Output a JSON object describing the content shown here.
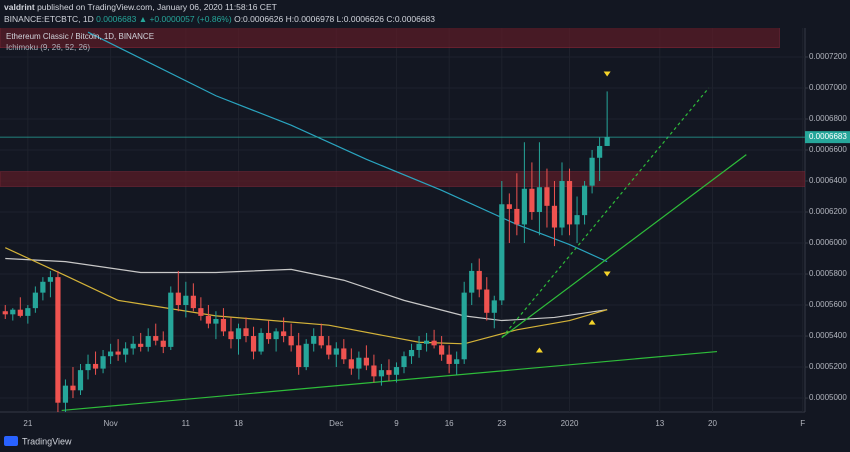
{
  "header": {
    "user": "valdrint",
    "published": "published on TradingView.com, January 06, 2020 11:58:16 CET",
    "symbol": "BINANCE:ETCBTC, 1D",
    "price": "0.0006683",
    "change": "▲ +0.0000057 (+0.86%)",
    "open": "O:0.0006626",
    "high": "H:0.0006978",
    "low": "L:0.0006626",
    "close": "C:0.0006683"
  },
  "footer": {
    "logo": "TradingView"
  },
  "chart_data": {
    "type": "candlestick",
    "legend": [
      "Ethereum Classic / Bitcoin, 1D, BINANCE",
      "Ichimoku (9, 26, 52, 26)"
    ],
    "up_color": "#26a69a",
    "down_color": "#ef5350",
    "grid": true,
    "xlim": [
      -3.7,
      103.3
    ],
    "ylim": [
      0.000491,
      0.0007387
    ],
    "xticks": [
      {
        "value": 0,
        "label": "21"
      },
      {
        "value": 11,
        "label": "Nov"
      },
      {
        "value": 21,
        "label": "11"
      },
      {
        "value": 28,
        "label": "18"
      },
      {
        "value": 41,
        "label": "Dec"
      },
      {
        "value": 49,
        "label": "9"
      },
      {
        "value": 56,
        "label": "16"
      },
      {
        "value": 63,
        "label": "23"
      },
      {
        "value": 72,
        "label": "2020"
      },
      {
        "value": 84,
        "label": "13"
      },
      {
        "value": 91,
        "label": "20"
      },
      {
        "value": 103,
        "label": "F"
      }
    ],
    "yticks": [
      {
        "value": 0.00072,
        "label": "0.0007200"
      },
      {
        "value": 0.0007,
        "label": "0.0007000"
      },
      {
        "value": 0.00068,
        "label": "0.0006800"
      },
      {
        "value": 0.00066,
        "label": "0.0006600"
      },
      {
        "value": 0.00064,
        "label": "0.0006400"
      },
      {
        "value": 0.00062,
        "label": "0.0006200"
      },
      {
        "value": 0.0006,
        "label": "0.0006000"
      },
      {
        "value": 0.00058,
        "label": "0.0005800"
      },
      {
        "value": 0.00056,
        "label": "0.0005600"
      },
      {
        "value": 0.00054,
        "label": "0.0005400"
      },
      {
        "value": 0.00052,
        "label": "0.0005200"
      },
      {
        "value": 0.0005,
        "label": "0.0005000"
      }
    ],
    "x": [
      -3,
      -2,
      -1,
      0,
      1,
      2,
      3,
      4,
      5,
      6,
      7,
      8,
      9,
      10,
      11,
      12,
      13,
      14,
      15,
      16,
      17,
      18,
      19,
      20,
      21,
      22,
      23,
      24,
      25,
      26,
      27,
      28,
      29,
      30,
      31,
      32,
      33,
      34,
      35,
      36,
      37,
      38,
      39,
      40,
      41,
      42,
      43,
      44,
      45,
      46,
      47,
      48,
      49,
      50,
      51,
      52,
      53,
      54,
      55,
      56,
      57,
      58,
      59,
      60,
      61,
      62,
      63,
      64,
      65,
      66,
      67,
      68,
      69,
      70,
      71,
      72,
      73,
      74,
      75,
      76,
      77
    ],
    "open": [
      0.000556,
      0.000554,
      0.000557,
      0.000553,
      0.000558,
      0.000568,
      0.000575,
      0.000578,
      0.000497,
      0.000508,
      0.000505,
      0.000518,
      0.000522,
      0.000519,
      0.000527,
      0.00053,
      0.000528,
      0.000532,
      0.000535,
      0.000533,
      0.00054,
      0.000537,
      0.000533,
      0.000568,
      0.00056,
      0.000566,
      0.000558,
      0.000553,
      0.000548,
      0.000551,
      0.000543,
      0.000538,
      0.000545,
      0.00054,
      0.00053,
      0.000542,
      0.000538,
      0.000543,
      0.00054,
      0.000534,
      0.00052,
      0.000535,
      0.00054,
      0.000534,
      0.000528,
      0.000532,
      0.000525,
      0.000519,
      0.000526,
      0.000521,
      0.000514,
      0.000518,
      0.000515,
      0.00052,
      0.000527,
      0.000531,
      0.000535,
      0.000537,
      0.000534,
      0.000528,
      0.000522,
      0.000525,
      0.000568,
      0.000582,
      0.00057,
      0.000555,
      0.000563,
      0.000625,
      0.000622,
      0.000612,
      0.000635,
      0.00062,
      0.000636,
      0.000624,
      0.00061,
      0.00064,
      0.000612,
      0.000618,
      0.000637,
      0.000655,
      0.0006626
    ],
    "high": [
      0.00056,
      0.000558,
      0.000565,
      0.00056,
      0.000572,
      0.000578,
      0.000582,
      0.000582,
      0.000512,
      0.00052,
      0.000522,
      0.000528,
      0.00053,
      0.000531,
      0.000535,
      0.000538,
      0.000536,
      0.00054,
      0.000542,
      0.000545,
      0.000548,
      0.000543,
      0.000572,
      0.000582,
      0.000575,
      0.000574,
      0.000565,
      0.00056,
      0.000556,
      0.000558,
      0.000552,
      0.000548,
      0.000552,
      0.000546,
      0.000545,
      0.00055,
      0.000545,
      0.000552,
      0.000548,
      0.000542,
      0.000538,
      0.000545,
      0.000548,
      0.00054,
      0.000536,
      0.000538,
      0.000532,
      0.00053,
      0.000534,
      0.000528,
      0.000522,
      0.000525,
      0.000523,
      0.00053,
      0.000535,
      0.00054,
      0.000542,
      0.000544,
      0.00054,
      0.000534,
      0.00053,
      0.000575,
      0.000587,
      0.00059,
      0.000578,
      0.000566,
      0.00064,
      0.000632,
      0.000645,
      0.000665,
      0.000652,
      0.000665,
      0.000648,
      0.00064,
      0.000652,
      0.000648,
      0.00063,
      0.00064,
      0.00066,
      0.000668,
      0.0006978
    ],
    "low": [
      0.000551,
      0.00055,
      0.000552,
      0.000548,
      0.000555,
      0.000563,
      0.000565,
      0.000491,
      0.00049,
      0.0005,
      0.000502,
      0.000512,
      0.000515,
      0.000516,
      0.000522,
      0.000524,
      0.000523,
      0.000528,
      0.00053,
      0.00053,
      0.000534,
      0.000529,
      0.000531,
      0.000556,
      0.000552,
      0.000556,
      0.00055,
      0.000545,
      0.000538,
      0.00054,
      0.000532,
      0.000528,
      0.000536,
      0.000525,
      0.000528,
      0.000535,
      0.00053,
      0.000536,
      0.00053,
      0.000515,
      0.000518,
      0.00053,
      0.000532,
      0.000525,
      0.00052,
      0.000522,
      0.000515,
      0.000512,
      0.000518,
      0.00051,
      0.000508,
      0.000511,
      0.00051,
      0.000516,
      0.000522,
      0.000526,
      0.00053,
      0.000532,
      0.000524,
      0.000516,
      0.000515,
      0.000522,
      0.00056,
      0.000565,
      0.00055,
      0.000545,
      0.00056,
      0.0006,
      0.000605,
      0.0006,
      0.000615,
      0.000605,
      0.00061,
      0.000598,
      0.000605,
      0.000605,
      0.0006,
      0.000612,
      0.000632,
      0.00064,
      0.0006626
    ],
    "close": [
      0.000554,
      0.000557,
      0.000553,
      0.000558,
      0.000568,
      0.000575,
      0.000578,
      0.000497,
      0.000508,
      0.000505,
      0.000518,
      0.000522,
      0.000519,
      0.000527,
      0.00053,
      0.000528,
      0.000532,
      0.000535,
      0.000533,
      0.00054,
      0.000537,
      0.000533,
      0.000568,
      0.00056,
      0.000566,
      0.000558,
      0.000553,
      0.000548,
      0.000551,
      0.000543,
      0.000538,
      0.000545,
      0.00054,
      0.00053,
      0.000542,
      0.000538,
      0.000543,
      0.00054,
      0.000534,
      0.00052,
      0.000535,
      0.00054,
      0.000534,
      0.000528,
      0.000532,
      0.000525,
      0.000519,
      0.000526,
      0.000521,
      0.000514,
      0.000518,
      0.000515,
      0.00052,
      0.000527,
      0.000531,
      0.000535,
      0.000537,
      0.000534,
      0.000528,
      0.000522,
      0.000525,
      0.000568,
      0.000582,
      0.00057,
      0.000555,
      0.000563,
      0.000625,
      0.000622,
      0.000612,
      0.000635,
      0.00062,
      0.000636,
      0.000624,
      0.00061,
      0.00064,
      0.000612,
      0.000618,
      0.000637,
      0.000655,
      0.0006626,
      0.0006683
    ],
    "lines": [
      {
        "color": "#2aa5c0",
        "x": [
          8,
          25,
          35,
          45,
          55,
          65,
          72,
          77
        ],
        "values": [
          0.000736,
          0.000695,
          0.000676,
          0.000654,
          0.000634,
          0.000612,
          0.000599,
          0.000588
        ]
      },
      {
        "color": "#c8c8c8",
        "x": [
          -3,
          5,
          15,
          25,
          35,
          42,
          50,
          58,
          63,
          70,
          77
        ],
        "values": [
          0.00059,
          0.000588,
          0.000581,
          0.000581,
          0.000583,
          0.000576,
          0.000563,
          0.000553,
          0.00055,
          0.000552,
          0.000557
        ]
      },
      {
        "color": "#d4b339",
        "x": [
          -3,
          5,
          12,
          25,
          40,
          52,
          58,
          65,
          72,
          77
        ],
        "values": [
          0.000597,
          0.000579,
          0.000563,
          0.000553,
          0.000547,
          0.000536,
          0.000535,
          0.000544,
          0.00055,
          0.000557
        ]
      }
    ],
    "zones": [
      {
        "color": "#5a1c27",
        "x": [
          -3.7,
          99.9
        ],
        "values": [
          0.000726,
          0.00074
        ]
      },
      {
        "color": "#5a1c27",
        "x": [
          -3.7,
          103.3
        ],
        "values": [
          0.0006365,
          0.000646
        ]
      }
    ],
    "trendlines": [
      {
        "color": "#2ebd3a",
        "x": [
          4.5,
          91.6
        ],
        "values": [
          0.000492,
          0.00053
        ],
        "dashed": false
      },
      {
        "color": "#2ebd3a",
        "x": [
          63,
          95.5
        ],
        "values": [
          0.000539,
          0.000657
        ],
        "dashed": false
      },
      {
        "color": "#2ebd3a",
        "x": [
          63,
          90.5
        ],
        "values": [
          0.000539,
          0.0007
        ],
        "dashed": true
      }
    ],
    "markers": [
      {
        "x": 77,
        "value": 0.000709,
        "direction": "down"
      },
      {
        "x": 77,
        "value": 0.00058,
        "direction": "down"
      },
      {
        "x": 75,
        "value": 0.000549,
        "direction": "up"
      },
      {
        "x": 68,
        "value": 0.000531,
        "direction": "up"
      }
    ],
    "marker_color": "#f5d42a",
    "price_line_color": "#26a69a"
  }
}
